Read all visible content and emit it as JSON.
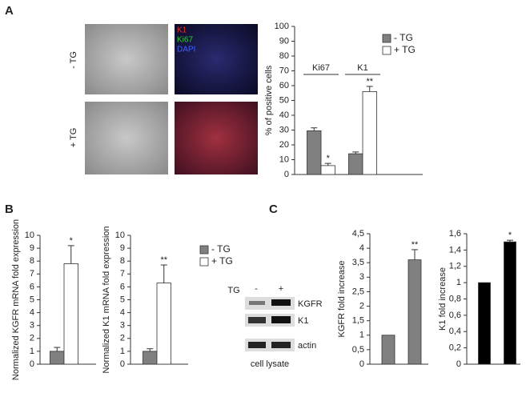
{
  "figure": {
    "panel_labels": [
      "A",
      "B",
      "C"
    ],
    "micrograph_rows": [
      "- TG",
      "+ TG"
    ],
    "stain_labels": [
      "K1",
      "Ki67",
      "DAPI"
    ],
    "blot": {
      "condition": "TG",
      "lanes": [
        "-",
        "+"
      ],
      "bands": [
        "KGFR",
        "K1",
        "actin"
      ],
      "caption": "cell lysate"
    }
  },
  "chart_data": [
    {
      "type": "bar",
      "y_label": "% of positive cells",
      "categories": [
        "Ki67",
        "K1"
      ],
      "series": [
        {
          "name": "- TG",
          "color": "#808080",
          "values": [
            29.5,
            14
          ],
          "errors": [
            2,
            1.2
          ]
        },
        {
          "name": "+ TG",
          "color": "#ffffff",
          "values": [
            6,
            56
          ],
          "errors": [
            1.5,
            3.5
          ],
          "significance": [
            "*",
            "**"
          ]
        }
      ],
      "ylim": [
        0,
        100
      ],
      "yticks": [
        0,
        10,
        20,
        30,
        40,
        50,
        60,
        70,
        80,
        90,
        100
      ],
      "legend": "upper right"
    },
    {
      "type": "bar",
      "y_label": "Normalized KGFR mRNA fold expression",
      "categories": [
        null
      ],
      "series": [
        {
          "color": "#808080",
          "values": [
            1
          ],
          "errors": [
            0.3
          ]
        },
        {
          "color": "#ffffff",
          "values": [
            7.8
          ],
          "errors": [
            1.4
          ],
          "significance": [
            "*"
          ]
        }
      ],
      "ylim": [
        0,
        10
      ],
      "yticks": [
        0,
        1,
        2,
        3,
        4,
        5,
        6,
        7,
        8,
        9,
        10
      ],
      "legend": false
    },
    {
      "type": "bar",
      "y_label": "Normalized K1 mRNA fold expression",
      "categories": [
        null
      ],
      "series": [
        {
          "name": "- TG",
          "color": "#808080",
          "values": [
            1
          ],
          "errors": [
            0.2
          ]
        },
        {
          "name": "+ TG",
          "color": "#ffffff",
          "values": [
            6.3
          ],
          "errors": [
            1.4
          ],
          "significance": [
            "**"
          ]
        }
      ],
      "ylim": [
        0,
        10
      ],
      "yticks": [
        0,
        1,
        2,
        3,
        4,
        5,
        6,
        7,
        8,
        9,
        10
      ],
      "legend": "upper right"
    },
    {
      "type": "bar",
      "y_label": "KGFR fold increase",
      "categories": [
        null,
        null
      ],
      "values": [
        1,
        3.6
      ],
      "errors": [
        null,
        0.35
      ],
      "significance": [
        null,
        "**"
      ],
      "color": "#808080",
      "ylim": [
        0,
        4.5
      ],
      "yticks": [
        0,
        {
          "value": 0.5,
          "label": "0,5"
        },
        1,
        {
          "value": 1.5,
          "label": "1,5"
        },
        2,
        {
          "value": 2.5,
          "label": "2,5"
        },
        3,
        {
          "value": 3.5,
          "label": "3,5"
        },
        4,
        {
          "value": 4.5,
          "label": "4,5"
        }
      ]
    },
    {
      "type": "bar",
      "y_label": "K1 fold increase",
      "categories": [
        null,
        null
      ],
      "values": [
        1,
        1.5
      ],
      "errors": [
        null,
        0.02
      ],
      "significance": [
        null,
        "*"
      ],
      "color": "#000000",
      "ylim": [
        0,
        1.6
      ],
      "yticks": [
        0,
        {
          "value": 0.2,
          "label": "0,2"
        },
        {
          "value": 0.4,
          "label": "0,4"
        },
        {
          "value": 0.6,
          "label": "0,6"
        },
        {
          "value": 0.8,
          "label": "0,8"
        },
        1,
        {
          "value": 1.2,
          "label": "1,2"
        },
        {
          "value": 1.4,
          "label": "1,4"
        },
        {
          "value": 1.6,
          "label": "1,6"
        }
      ]
    }
  ]
}
